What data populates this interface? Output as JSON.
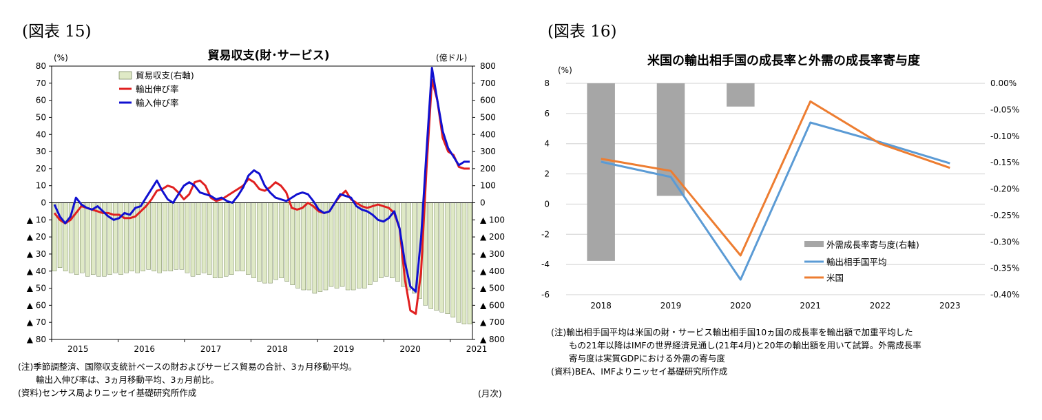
{
  "figure15": {
    "label": "(図表 15)",
    "title": "貿易収支(財･サービス)",
    "left_unit": "(%)",
    "right_unit": "(億ドル)",
    "x_unit": "(月次)",
    "notes": [
      "(注)季節調整済、国際収支統計ベースの財およびサービス貿易の合計、3ヵ月移動平均。",
      "輸出入伸び率は、3ヵ月移動平均、3ヵ月前比。",
      "(資料)センサス局よりニッセイ基礎研究所作成"
    ],
    "chart_data": {
      "type": "bar+line",
      "title": "貿易収支(財･サービス)",
      "x_ticks": [
        "2015",
        "2016",
        "2017",
        "2018",
        "2019",
        "2020",
        "2021"
      ],
      "left_axis": {
        "unit": "(%)",
        "range": [
          -80,
          80
        ],
        "step": 10,
        "tick_labels": [
          "80",
          "70",
          "60",
          "50",
          "40",
          "30",
          "20",
          "10",
          "0",
          "▲ 10",
          "▲ 20",
          "▲ 30",
          "▲ 40",
          "▲ 50",
          "▲ 60",
          "▲ 70",
          "▲ 80"
        ]
      },
      "right_axis": {
        "unit": "(億ドル)",
        "range": [
          -800,
          800
        ],
        "step": 100,
        "tick_labels": [
          "800",
          "700",
          "600",
          "500",
          "400",
          "300",
          "200",
          "100",
          "0",
          "▲ 100",
          "▲ 200",
          "▲ 300",
          "▲ 400",
          "▲ 500",
          "▲ 600",
          "▲ 700",
          "▲ 800"
        ]
      },
      "legend": [
        "貿易収支(右軸)",
        "輸出伸び率",
        "輸入伸び率"
      ],
      "series": [
        {
          "name": "貿易収支(右軸)",
          "axis": "right",
          "kind": "bar",
          "color": "#dfe9c6",
          "values": [
            -400,
            -380,
            -400,
            -410,
            -420,
            -410,
            -430,
            -420,
            -430,
            -430,
            -420,
            -410,
            -420,
            -410,
            -400,
            -410,
            -400,
            -390,
            -400,
            -410,
            -400,
            -400,
            -390,
            -390,
            -410,
            -430,
            -420,
            -410,
            -420,
            -440,
            -440,
            -430,
            -420,
            -400,
            -400,
            -420,
            -440,
            -460,
            -470,
            -470,
            -450,
            -440,
            -460,
            -480,
            -500,
            -510,
            -510,
            -530,
            -520,
            -510,
            -490,
            -500,
            -490,
            -510,
            -510,
            -500,
            -500,
            -480,
            -460,
            -440,
            -430,
            -440,
            -460,
            -490,
            -510,
            -530,
            -560,
            -600,
            -620,
            -630,
            -640,
            -650,
            -670,
            -700,
            -710,
            -710
          ]
        },
        {
          "name": "輸出伸び率",
          "axis": "left",
          "kind": "line",
          "color": "#e02020",
          "values": [
            -6,
            -10,
            -12,
            -10,
            -6,
            -2,
            -3,
            -4,
            -5,
            -6,
            -6,
            -7,
            -7,
            -9,
            -9,
            -8,
            -5,
            -2,
            2,
            7,
            8,
            10,
            9,
            6,
            2,
            5,
            12,
            13,
            10,
            3,
            1,
            2,
            4,
            6,
            8,
            10,
            14,
            12,
            8,
            7,
            9,
            12,
            10,
            6,
            -3,
            -4,
            -3,
            0,
            -2,
            -5,
            -6,
            -5,
            0,
            4,
            7,
            2,
            0,
            -2,
            -3,
            -2,
            -1,
            -2,
            -3,
            -6,
            -15,
            -45,
            -63,
            -65,
            -40,
            20,
            72,
            60,
            38,
            30,
            28,
            21,
            20,
            20
          ]
        },
        {
          "name": "輸入伸び率",
          "axis": "left",
          "kind": "line",
          "color": "#1010d0",
          "values": [
            -1,
            -8,
            -12,
            -8,
            3,
            -1,
            -3,
            -4,
            -2,
            -5,
            -8,
            -10,
            -9,
            -6,
            -7,
            -3,
            -2,
            3,
            8,
            13,
            7,
            2,
            0,
            5,
            10,
            12,
            10,
            6,
            5,
            4,
            2,
            3,
            1,
            0,
            4,
            9,
            16,
            19,
            17,
            10,
            6,
            3,
            2,
            1,
            3,
            5,
            6,
            5,
            1,
            -4,
            -6,
            -5,
            0,
            5,
            4,
            3,
            -2,
            -4,
            -5,
            -7,
            -10,
            -11,
            -9,
            -5,
            -15,
            -35,
            -49,
            -52,
            -20,
            30,
            79,
            60,
            42,
            32,
            27,
            22,
            24,
            24
          ]
        }
      ]
    }
  },
  "figure16": {
    "label": "(図表 16)",
    "title": "米国の輸出相手国の成長率と外需の成長率寄与度",
    "left_unit": "(%)",
    "notes": [
      "(注)輸出相手国平均は米国の財・サービス輸出相手国10ヵ国の成長率を輸出額で加重平均した",
      "もの21年以降はIMFの世界経済見通し(21年4月)と20年の輸出額を用いて試算。外需成長率",
      "寄与度は実質GDPにおける外需の寄与度",
      "(資料)BEA、IMFよりニッセイ基礎研究所作成"
    ],
    "chart_data": {
      "type": "bar+line",
      "title": "米国の輸出相手国の成長率と外需の成長率寄与度",
      "categories": [
        "2018",
        "2019",
        "2020",
        "2021",
        "2022",
        "2023"
      ],
      "left_axis": {
        "unit": "(%)",
        "range": [
          -6,
          8
        ],
        "step": 2,
        "tick_labels": [
          "8",
          "6",
          "4",
          "2",
          "0",
          "-2",
          "-4",
          "-6"
        ]
      },
      "right_axis": {
        "range": [
          -0.4,
          0.0
        ],
        "step": 0.05,
        "tick_labels": [
          "0.00%",
          "-0.05%",
          "-0.10%",
          "-0.15%",
          "-0.20%",
          "-0.25%",
          "-0.30%",
          "-0.35%",
          "-0.40%"
        ]
      },
      "legend": [
        "外需成長率寄与度(右軸)",
        "輸出相手国平均",
        "米国"
      ],
      "series": [
        {
          "name": "外需成長率寄与度(右軸)",
          "axis": "right",
          "kind": "bar",
          "color": "#a6a6a6",
          "values": [
            -0.336,
            -0.213,
            -0.044,
            null,
            null,
            null
          ]
        },
        {
          "name": "輸出相手国平均",
          "axis": "left",
          "kind": "line",
          "color": "#5b9bd5",
          "values": [
            2.8,
            1.8,
            -5.0,
            5.4,
            4.1,
            2.7
          ]
        },
        {
          "name": "米国",
          "axis": "left",
          "kind": "line",
          "color": "#ed7d31",
          "values": [
            3.0,
            2.2,
            -3.4,
            6.8,
            4.0,
            2.4
          ]
        }
      ]
    }
  }
}
